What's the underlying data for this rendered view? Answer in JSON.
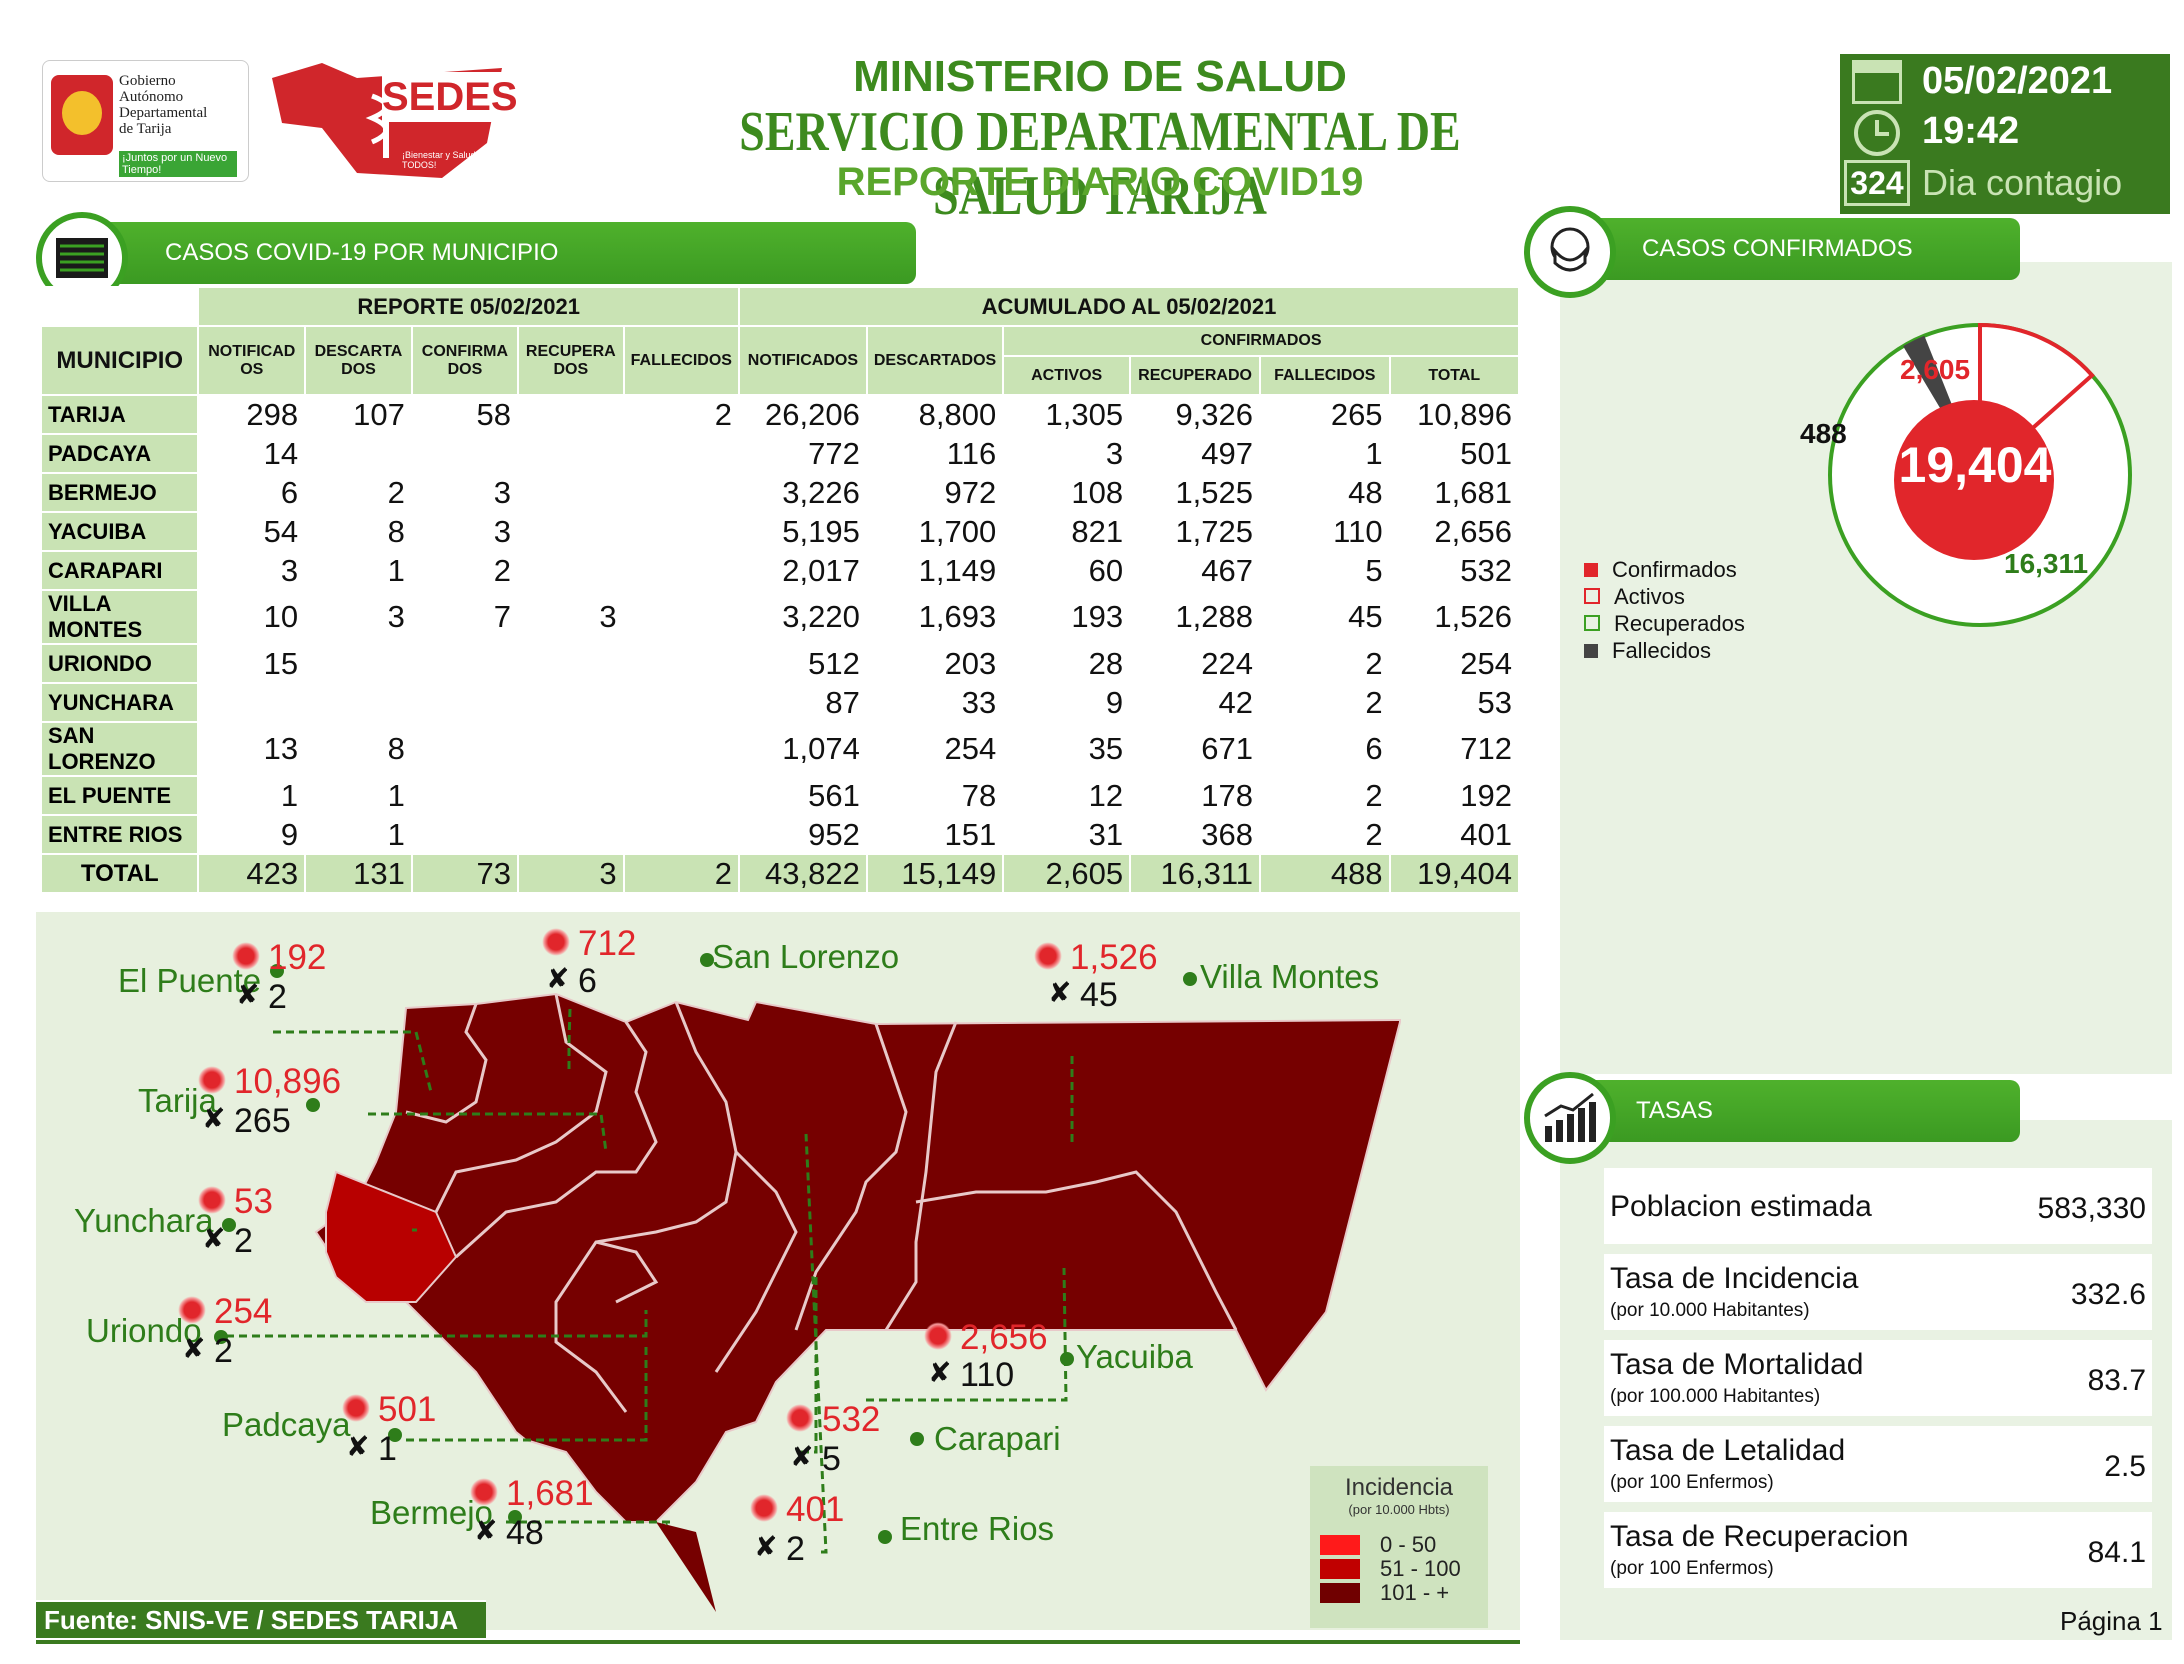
{
  "header": {
    "logo1_lines": [
      "Gobierno",
      "Autónomo",
      "Departamental",
      "de Tarija"
    ],
    "logo1_slogan": "¡Juntos por un Nuevo Tiempo!",
    "logo2_name": "SEDES",
    "logo2_slogan": "¡Bienestar y Salud para TODOS!",
    "title1": "MINISTERIO DE SALUD",
    "title2": "SERVICIO DEPARTAMENTAL DE SALUD TARIJA",
    "title3": "REPORTE DIARIO COVID19",
    "date": "05/02/2021",
    "time": "19:42",
    "day_number": "324",
    "day_label": "Dia contagio"
  },
  "municipio_section": {
    "title": "CASOS COVID-19 POR MUNICIPIO",
    "report_header": "REPORTE 05/02/2021",
    "acum_header": "ACUMULADO AL 05/02/2021",
    "confirmados_header": "CONFIRMADOS",
    "municipio_header": "MUNICIPIO",
    "col_report": [
      "NOTIFICADOS",
      "DESCARTADOS",
      "CONFIRMADOS",
      "RECUPERADOS",
      "FALLECIDOS"
    ],
    "col_acum": [
      "NOTIFICADOS",
      "DESCARTADOS"
    ],
    "col_conf": [
      "ACTIVOS",
      "RECUPERADO",
      "FALLECIDOS",
      "TOTAL"
    ],
    "rows": [
      {
        "name": "TARIJA",
        "r": [
          "298",
          "107",
          "58",
          "",
          "2"
        ],
        "a": [
          "26,206",
          "8,800",
          "1,305",
          "9,326",
          "265",
          "10,896"
        ]
      },
      {
        "name": "PADCAYA",
        "r": [
          "14",
          "",
          "",
          "",
          ""
        ],
        "a": [
          "772",
          "116",
          "3",
          "497",
          "1",
          "501"
        ]
      },
      {
        "name": "BERMEJO",
        "r": [
          "6",
          "2",
          "3",
          "",
          ""
        ],
        "a": [
          "3,226",
          "972",
          "108",
          "1,525",
          "48",
          "1,681"
        ]
      },
      {
        "name": "YACUIBA",
        "r": [
          "54",
          "8",
          "3",
          "",
          ""
        ],
        "a": [
          "5,195",
          "1,700",
          "821",
          "1,725",
          "110",
          "2,656"
        ]
      },
      {
        "name": "CARAPARI",
        "r": [
          "3",
          "1",
          "2",
          "",
          ""
        ],
        "a": [
          "2,017",
          "1,149",
          "60",
          "467",
          "5",
          "532"
        ]
      },
      {
        "name": "VILLA MONTES",
        "r": [
          "10",
          "3",
          "7",
          "3",
          ""
        ],
        "a": [
          "3,220",
          "1,693",
          "193",
          "1,288",
          "45",
          "1,526"
        ]
      },
      {
        "name": "URIONDO",
        "r": [
          "15",
          "",
          "",
          "",
          ""
        ],
        "a": [
          "512",
          "203",
          "28",
          "224",
          "2",
          "254"
        ]
      },
      {
        "name": "YUNCHARA",
        "r": [
          "",
          "",
          "",
          "",
          ""
        ],
        "a": [
          "87",
          "33",
          "9",
          "42",
          "2",
          "53"
        ]
      },
      {
        "name": "SAN LORENZO",
        "r": [
          "13",
          "8",
          "",
          "",
          ""
        ],
        "a": [
          "1,074",
          "254",
          "35",
          "671",
          "6",
          "712"
        ]
      },
      {
        "name": "EL PUENTE",
        "r": [
          "1",
          "1",
          "",
          "",
          ""
        ],
        "a": [
          "561",
          "78",
          "12",
          "178",
          "2",
          "192"
        ]
      },
      {
        "name": "ENTRE RIOS",
        "r": [
          "9",
          "1",
          "",
          "",
          ""
        ],
        "a": [
          "952",
          "151",
          "31",
          "368",
          "2",
          "401"
        ]
      }
    ],
    "total": {
      "name": "TOTAL",
      "r": [
        "423",
        "131",
        "73",
        "3",
        "2"
      ],
      "a": [
        "43,822",
        "15,149",
        "2,605",
        "16,311",
        "488",
        "19,404"
      ]
    }
  },
  "map": {
    "labels": [
      {
        "name": "El Puente",
        "cases": "192",
        "deaths": "2"
      },
      {
        "name": "San Lorenzo",
        "cases": "712",
        "deaths": "6"
      },
      {
        "name": "Villa Montes",
        "cases": "1,526",
        "deaths": "45"
      },
      {
        "name": "Tarija",
        "cases": "10,896",
        "deaths": "265"
      },
      {
        "name": "Yunchara",
        "cases": "53",
        "deaths": "2"
      },
      {
        "name": "Uriondo",
        "cases": "254",
        "deaths": "2"
      },
      {
        "name": "Yacuiba",
        "cases": "2,656",
        "deaths": "110"
      },
      {
        "name": "Padcaya",
        "cases": "501",
        "deaths": "1"
      },
      {
        "name": "Carapari",
        "cases": "532",
        "deaths": "5"
      },
      {
        "name": "Bermejo",
        "cases": "1,681",
        "deaths": "48"
      },
      {
        "name": "Entre Rios",
        "cases": "401",
        "deaths": "2"
      }
    ],
    "legend_title": "Incidencia",
    "legend_sub": "(por 10.000 Hbts)",
    "legend_items": [
      {
        "label": "0 - 50",
        "color": "#ff1a1a"
      },
      {
        "label": "51 - 100",
        "color": "#c00000"
      },
      {
        "label": "101 - +",
        "color": "#700000"
      }
    ],
    "source": "Fuente: SNIS-VE / SEDES TARIJA"
  },
  "confirmados": {
    "title": "CASOS CONFIRMADOS",
    "total": "19,404",
    "activos": "2,605",
    "fallecidos": "488",
    "recuperados": "16,311",
    "legend": [
      "Confirmados",
      "Activos",
      "Recuperados",
      "Fallecidos"
    ]
  },
  "chart_data": {
    "type": "pie",
    "title": "",
    "categories": [
      "Activos",
      "Recuperados",
      "Fallecidos"
    ],
    "values": [
      2605,
      16311,
      488
    ],
    "total": 19404
  },
  "tasas": {
    "title": "TASAS",
    "rows": [
      {
        "label": "Poblacion estimada",
        "sub": "",
        "value": "583,330"
      },
      {
        "label": "Tasa de Incidencia",
        "sub": "(por 10.000 Habitantes)",
        "value": "332.6"
      },
      {
        "label": "Tasa de Mortalidad",
        "sub": "(por 100.000 Habitantes)",
        "value": "83.7"
      },
      {
        "label": "Tasa de Letalidad",
        "sub": "(por 100 Enfermos)",
        "value": "2.5"
      },
      {
        "label": "Tasa de Recuperacion",
        "sub": "(por 100 Enfermos)",
        "value": "84.1"
      }
    ]
  },
  "footer": {
    "page": "Página 1"
  }
}
